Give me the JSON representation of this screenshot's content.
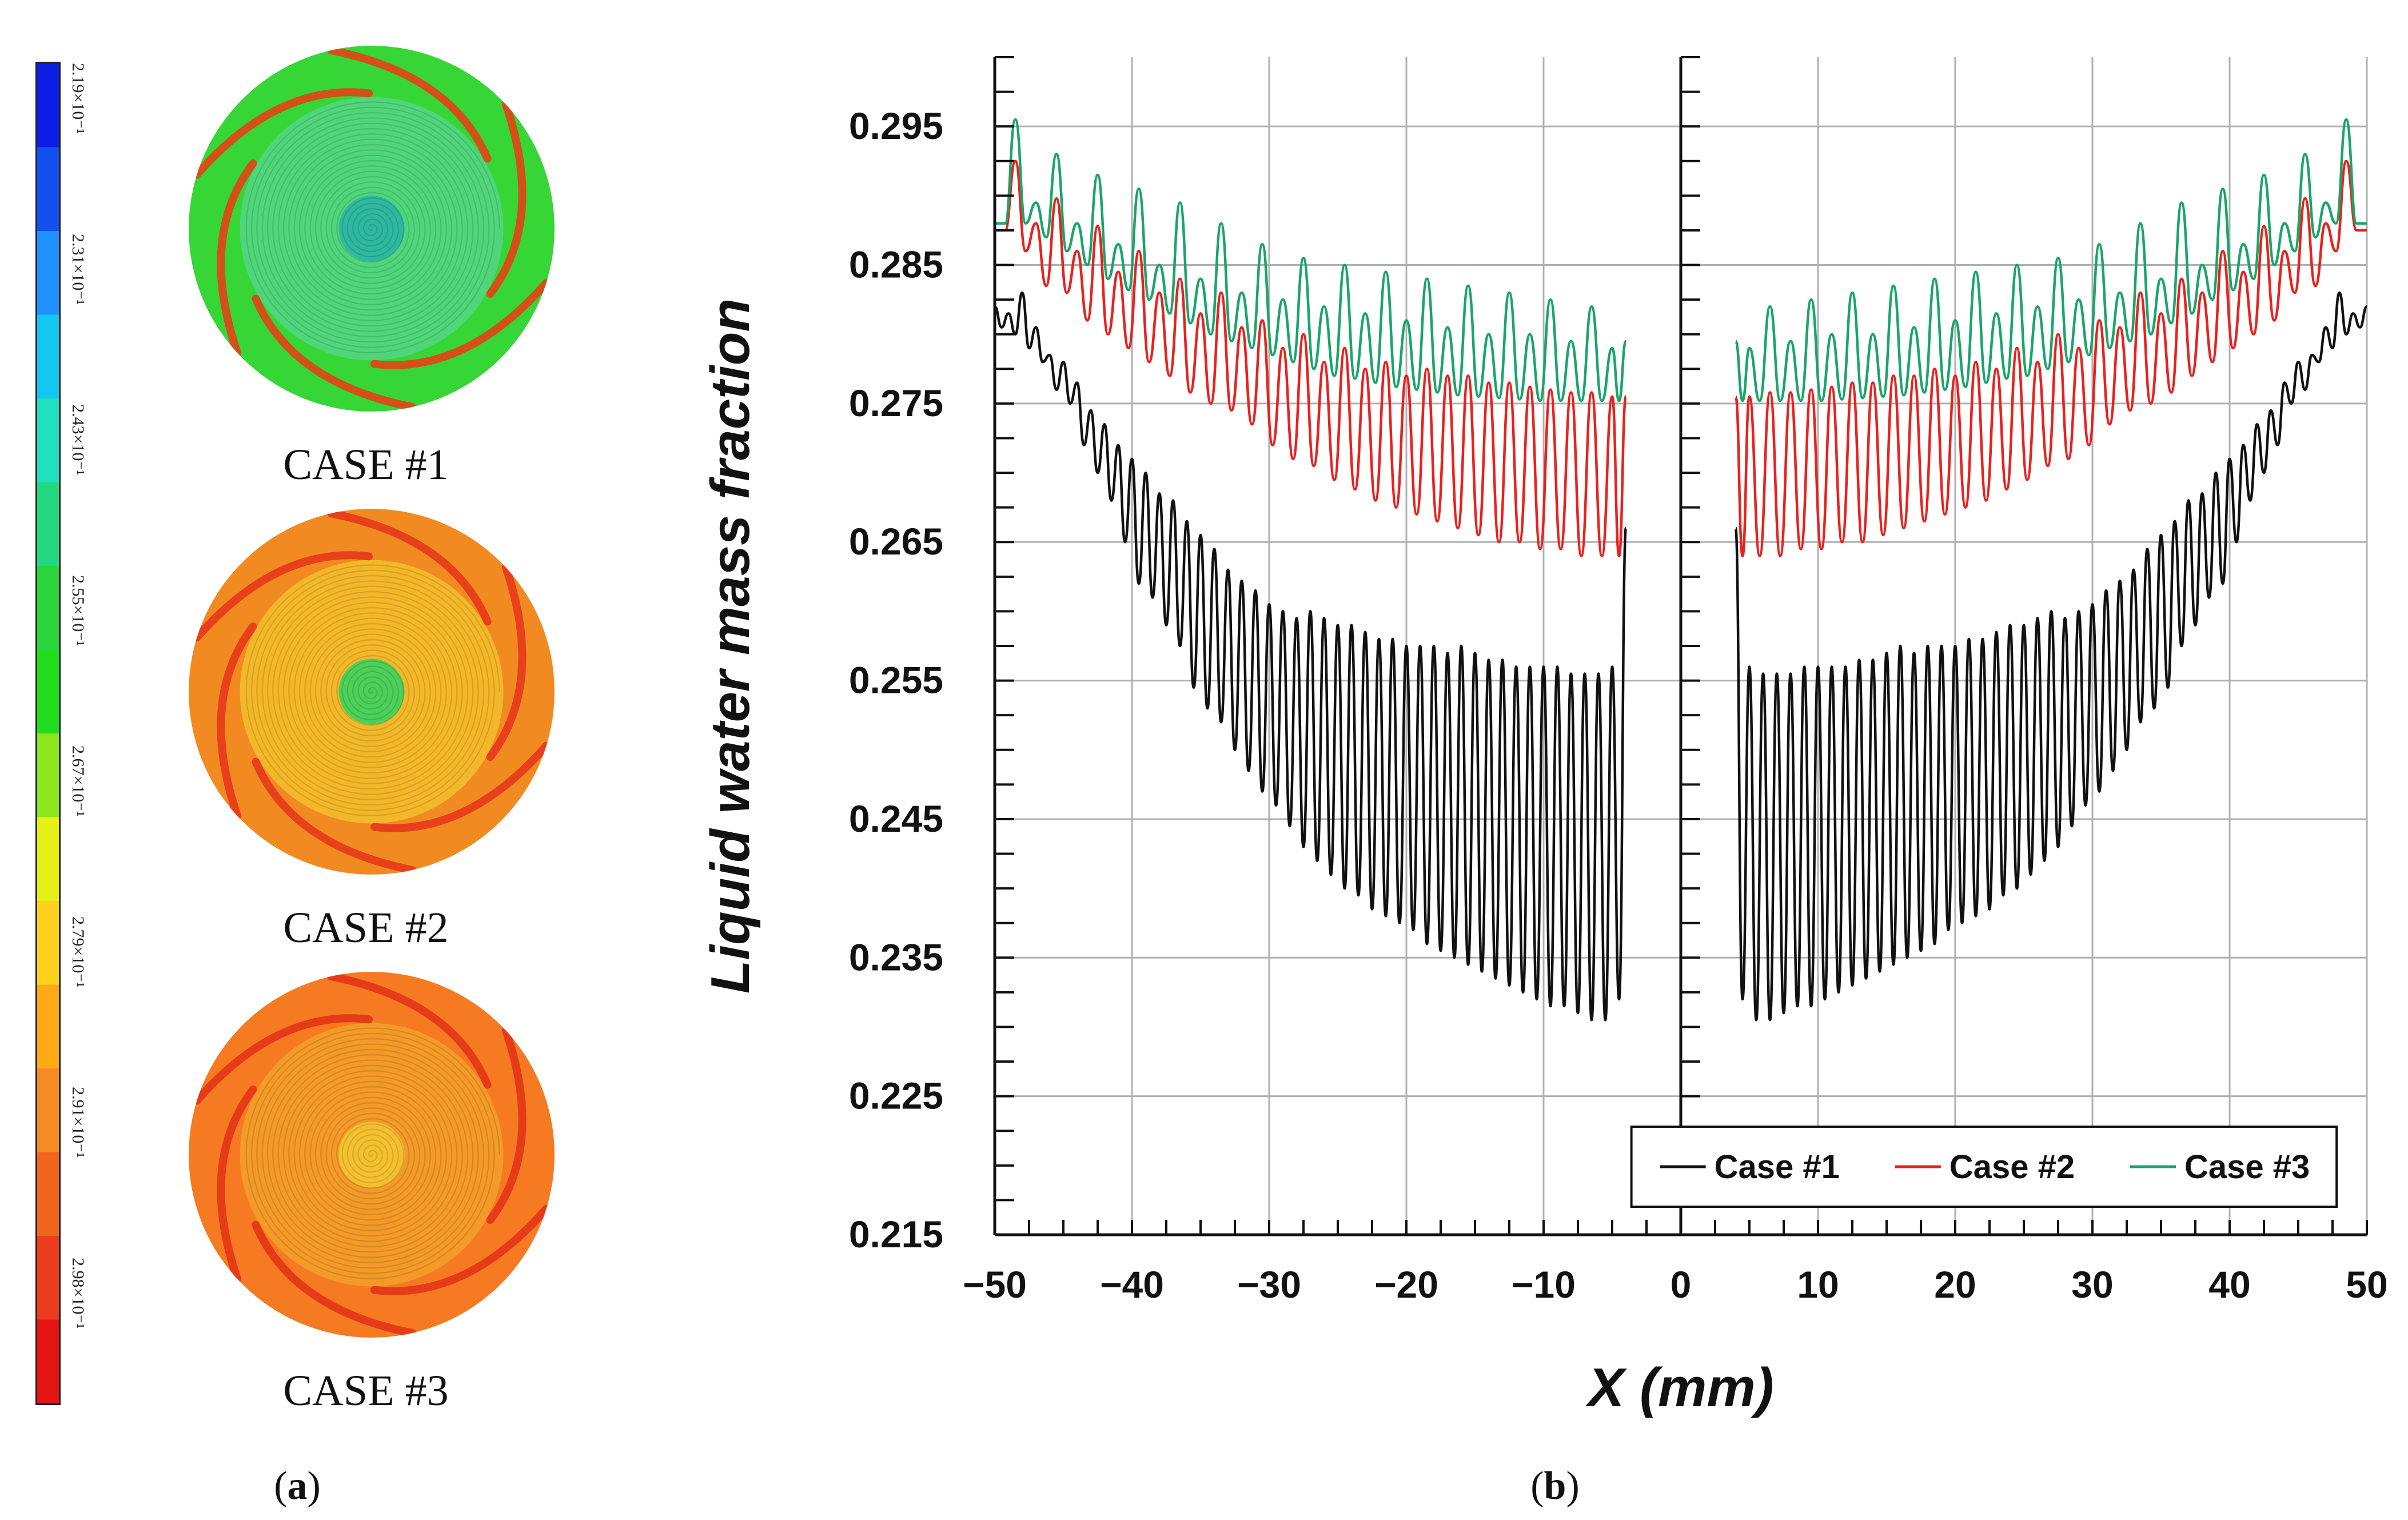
{
  "panel_a": {
    "label_open": "(",
    "label_letter": "a",
    "label_close": ")",
    "colorbar_ticks": [
      "2.19×10⁻¹",
      "2.31×10⁻¹",
      "2.43×10⁻¹",
      "2.55×10⁻¹",
      "2.67×10⁻¹",
      "2.79×10⁻¹",
      "2.91×10⁻¹",
      "2.98×10⁻¹"
    ],
    "colorbar_colors": [
      "#0a1ee6",
      "#1450f0",
      "#1e90ff",
      "#12c8f0",
      "#20e0c0",
      "#22d880",
      "#2ad43c",
      "#22dc1e",
      "#8ce61e",
      "#e6f014",
      "#ffd21e",
      "#ffaa14",
      "#f58c23",
      "#f0641e",
      "#eb3c1e",
      "#e61414"
    ],
    "cases": [
      {
        "name": "CASE #1",
        "outer_color": "#36d636",
        "inner_color": "#4fd67a",
        "center_color": "#2fb8a0",
        "streak_color": "#ee3a14"
      },
      {
        "name": "CASE #2",
        "outer_color": "#f28a22",
        "inner_color": "#f3b82a",
        "center_color": "#4cd05a",
        "streak_color": "#e5331a"
      },
      {
        "name": "CASE #3",
        "outer_color": "#f57a22",
        "inner_color": "#f39a28",
        "center_color": "#f5c030",
        "streak_color": "#e23016"
      }
    ]
  },
  "panel_b": {
    "label_open": "(",
    "label_letter": "b",
    "label_close": ")"
  },
  "chart_data": {
    "type": "line",
    "xlabel": "X (mm)",
    "ylabel": "Liquid water mass fraction",
    "xlim": [
      -50,
      50
    ],
    "ylim": [
      0.215,
      0.3
    ],
    "xticks": [
      -50,
      -40,
      -30,
      -20,
      -10,
      0,
      10,
      20,
      30,
      40,
      50
    ],
    "xtick_labels": [
      "−50",
      "−40",
      "−30",
      "−20",
      "−10",
      "0",
      "10",
      "20",
      "30",
      "40",
      "50"
    ],
    "yticks": [
      0.215,
      0.225,
      0.235,
      0.245,
      0.255,
      0.265,
      0.275,
      0.285,
      0.295
    ],
    "ytick_labels": [
      "0.215",
      "0.225",
      "0.235",
      "0.245",
      "0.255",
      "0.265",
      "0.275",
      "0.285",
      "0.295"
    ],
    "grid": true,
    "legend_position": "bottom-right",
    "symmetric_about_x": 0,
    "gap_x": [
      -4,
      4
    ],
    "series": [
      {
        "name": "Case #1",
        "color": "#111111",
        "x_left": [
          -50,
          -49,
          -48,
          -47,
          -46,
          -45,
          -44,
          -43,
          -42,
          -41,
          -40,
          -39,
          -38,
          -37,
          -36,
          -35,
          -34,
          -33,
          -32,
          -31,
          -30,
          -29,
          -28,
          -27,
          -26,
          -25,
          -24,
          -23,
          -22,
          -21,
          -20,
          -19,
          -18,
          -17,
          -16,
          -15,
          -14,
          -13,
          -12,
          -11,
          -10,
          -9,
          -8,
          -7,
          -6,
          -5,
          -4
        ],
        "y_peak": [
          0.282,
          0.2815,
          0.283,
          0.2805,
          0.2785,
          0.278,
          0.2765,
          0.2745,
          0.2735,
          0.272,
          0.271,
          0.27,
          0.2685,
          0.268,
          0.2665,
          0.2655,
          0.2645,
          0.263,
          0.2622,
          0.2615,
          0.2605,
          0.26,
          0.2595,
          0.26,
          0.2595,
          0.259,
          0.259,
          0.2585,
          0.258,
          0.258,
          0.2575,
          0.2575,
          0.2575,
          0.257,
          0.2575,
          0.257,
          0.2565,
          0.2565,
          0.256,
          0.256,
          0.256,
          0.256,
          0.2555,
          0.2555,
          0.2555,
          0.256,
          0.266
        ],
        "y_trough": [
          0.2805,
          0.28,
          0.279,
          0.278,
          0.276,
          0.275,
          0.272,
          0.27,
          0.268,
          0.265,
          0.262,
          0.261,
          0.259,
          0.2575,
          0.2545,
          0.253,
          0.252,
          0.25,
          0.2485,
          0.247,
          0.246,
          0.2445,
          0.243,
          0.242,
          0.241,
          0.24,
          0.2395,
          0.2385,
          0.238,
          0.2375,
          0.237,
          0.236,
          0.2355,
          0.235,
          0.2345,
          0.234,
          0.2335,
          0.233,
          0.2325,
          0.232,
          0.2315,
          0.2315,
          0.231,
          0.2305,
          0.2305,
          0.232,
          0.266
        ]
      },
      {
        "name": "Case #2",
        "color": "#e8221e",
        "x_left": [
          -50,
          -48.5,
          -47,
          -45.5,
          -44,
          -42.5,
          -41,
          -39.5,
          -38,
          -36.5,
          -35,
          -33.5,
          -32,
          -30.5,
          -29,
          -27.5,
          -26,
          -24.5,
          -23,
          -21.5,
          -20,
          -18.5,
          -17,
          -15.5,
          -14,
          -12.5,
          -11,
          -9.5,
          -8,
          -6.5,
          -5,
          -4
        ],
        "y_peak": [
          0.2875,
          0.2925,
          0.288,
          0.2898,
          0.286,
          0.2878,
          0.2845,
          0.286,
          0.283,
          0.284,
          0.2815,
          0.283,
          0.2805,
          0.281,
          0.279,
          0.28,
          0.278,
          0.279,
          0.2775,
          0.278,
          0.277,
          0.2775,
          0.277,
          0.277,
          0.2765,
          0.2765,
          0.2762,
          0.276,
          0.2758,
          0.2758,
          0.2755,
          0.2755
        ],
        "y_trough": [
          0.2875,
          0.286,
          0.2835,
          0.283,
          0.281,
          0.28,
          0.279,
          0.278,
          0.277,
          0.2758,
          0.275,
          0.2745,
          0.2735,
          0.272,
          0.271,
          0.2705,
          0.2695,
          0.2688,
          0.268,
          0.2675,
          0.267,
          0.2665,
          0.266,
          0.2655,
          0.265,
          0.265,
          0.2645,
          0.2645,
          0.264,
          0.264,
          0.264,
          0.2755
        ]
      },
      {
        "name": "Case #3",
        "color": "#1aa56a",
        "x_left": [
          -50,
          -48.5,
          -47,
          -45.5,
          -44,
          -42.5,
          -41,
          -39.5,
          -38,
          -36.5,
          -35,
          -33.5,
          -32,
          -30.5,
          -29,
          -27.5,
          -26,
          -24.5,
          -23,
          -21.5,
          -20,
          -18.5,
          -17,
          -15.5,
          -14,
          -12.5,
          -11,
          -9.5,
          -8,
          -6.5,
          -5,
          -4
        ],
        "y_peak": [
          0.288,
          0.2955,
          0.2895,
          0.293,
          0.288,
          0.2915,
          0.2865,
          0.2905,
          0.285,
          0.2895,
          0.284,
          0.288,
          0.283,
          0.2865,
          0.2825,
          0.2855,
          0.282,
          0.285,
          0.2815,
          0.2845,
          0.281,
          0.284,
          0.2805,
          0.2835,
          0.28,
          0.283,
          0.28,
          0.2825,
          0.2795,
          0.282,
          0.279,
          0.2795
        ],
        "y_trough": [
          0.288,
          0.288,
          0.287,
          0.286,
          0.285,
          0.284,
          0.2832,
          0.2825,
          0.2815,
          0.2808,
          0.28,
          0.2795,
          0.279,
          0.2785,
          0.278,
          0.2775,
          0.277,
          0.2768,
          0.2765,
          0.2762,
          0.276,
          0.2758,
          0.2756,
          0.2755,
          0.2754,
          0.2753,
          0.2752,
          0.2752,
          0.2752,
          0.2752,
          0.2752,
          0.2795
        ]
      }
    ]
  }
}
